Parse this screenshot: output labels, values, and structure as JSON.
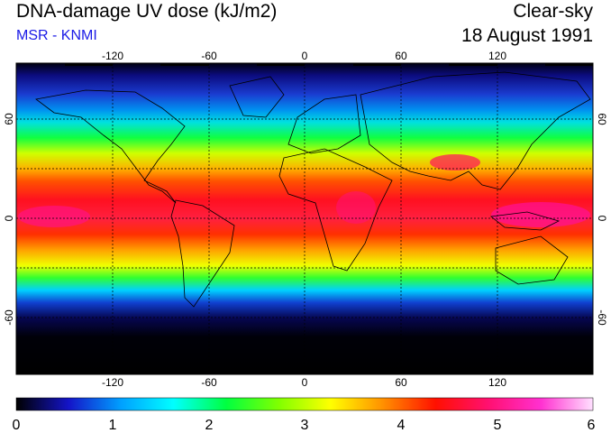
{
  "title": "DNA-damage UV dose (kJ/m2)",
  "source": "MSR - KNMI",
  "condition": "Clear-sky",
  "date": "18 August 1991",
  "map": {
    "lon_ticks": [
      -120,
      -60,
      0,
      60,
      120
    ],
    "lat_ticks": [
      60,
      0,
      -60
    ],
    "lon_labels": [
      "-120",
      "-60",
      "0",
      "60",
      "120"
    ],
    "lat_labels": [
      "60",
      "0",
      "-60"
    ]
  },
  "colorbar": {
    "min": 0,
    "max": 6,
    "tick_labels": [
      "0",
      "1",
      "2",
      "3",
      "4",
      "5",
      "6"
    ],
    "colors": [
      "#000000",
      "#1414c8",
      "#00a0ff",
      "#00ffff",
      "#00ff40",
      "#80ff00",
      "#ffff00",
      "#ff9000",
      "#ff1000",
      "#ff1070",
      "#ff30d0",
      "#ffe0ff"
    ]
  }
}
